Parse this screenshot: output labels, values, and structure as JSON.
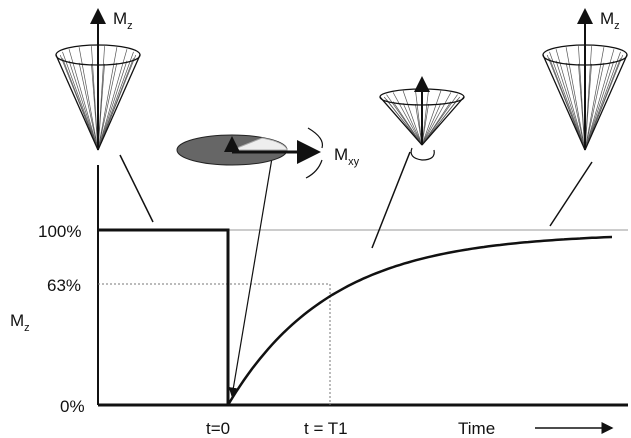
{
  "y_axis": {
    "label": {
      "main": "M",
      "sub": "z"
    },
    "ticks": [
      "100%",
      "63%",
      "0%"
    ]
  },
  "x_axis": {
    "ticks": [
      "t=0",
      "t = T1"
    ],
    "label": "Time"
  },
  "vectors": [
    {
      "main": "M",
      "sub": "z"
    },
    {
      "main": "M",
      "sub": "xy"
    },
    {
      "main": "M",
      "sub": "z"
    }
  ]
}
